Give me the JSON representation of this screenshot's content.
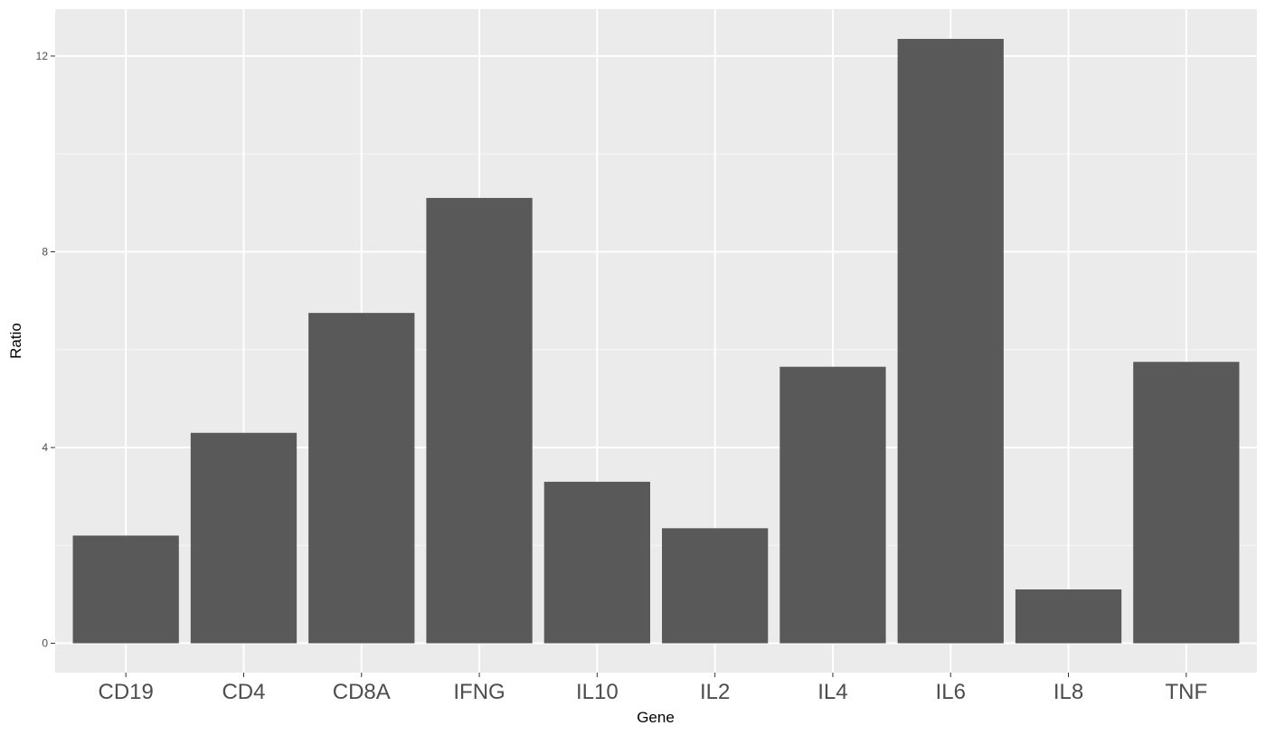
{
  "chart_data": {
    "type": "bar",
    "categories": [
      "CD19",
      "CD4",
      "CD8A",
      "IFNG",
      "IL10",
      "IL2",
      "IL4",
      "IL6",
      "IL8",
      "TNF"
    ],
    "values": [
      2.2,
      4.3,
      6.75,
      9.1,
      3.3,
      2.35,
      5.65,
      12.35,
      1.1,
      5.75
    ],
    "title": "",
    "xlabel": "Gene",
    "ylabel": "Ratio",
    "ylim": [
      -0.6,
      12.96
    ],
    "yticks": [
      0,
      4,
      8,
      12
    ],
    "ytick_labels": [
      "0",
      "4",
      "8",
      "12"
    ],
    "grid": true,
    "bar_color": "#595959",
    "panel_color": "#EBEBEB",
    "grid_color": "#FFFFFF"
  }
}
